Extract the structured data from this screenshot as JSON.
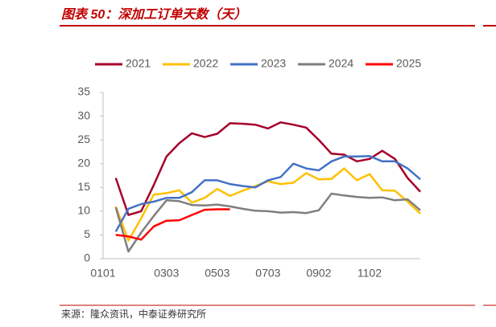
{
  "chart_data": {
    "type": "line",
    "title": "图表 50：深加工订单天数（天）",
    "source": "来源：隆众资讯，中泰证券研究所",
    "categories": [
      "0101",
      null,
      null,
      null,
      null,
      "0303",
      null,
      null,
      null,
      "0503",
      null,
      null,
      null,
      "0703",
      null,
      null,
      null,
      "0902",
      null,
      null,
      null,
      "1102",
      null,
      null,
      null,
      null
    ],
    "series": [
      {
        "name": "2021",
        "color": "#a5002a",
        "values": [
          null,
          17,
          9.2,
          10,
          15.5,
          21.5,
          24.3,
          26.4,
          25.6,
          26.3,
          28.5,
          28.4,
          28.2,
          27.4,
          28.7,
          28.2,
          27.6,
          25,
          22.1,
          21.9,
          20.5,
          21,
          22.7,
          21,
          17,
          14.1
        ]
      },
      {
        "name": "2022",
        "color": "#ffc000",
        "values": [
          null,
          11,
          3.8,
          8.5,
          13.5,
          13.8,
          14.4,
          11.8,
          12.8,
          14.7,
          13.2,
          14.3,
          15.3,
          16.3,
          15.7,
          16,
          18,
          16.7,
          16.8,
          19,
          16.5,
          17.8,
          14.4,
          14.3,
          12,
          9.5
        ]
      },
      {
        "name": "2023",
        "color": "#4472c4",
        "values": [
          null,
          5.7,
          10.5,
          11.5,
          12,
          12.8,
          12.8,
          14,
          16.5,
          16.5,
          15.7,
          15.3,
          15,
          16.5,
          17.2,
          20,
          19,
          18.6,
          20.5,
          21.5,
          21.5,
          21.6,
          20.5,
          20.5,
          19,
          16.7
        ]
      },
      {
        "name": "2024",
        "color": "#7f7f7f",
        "values": [
          null,
          10.8,
          1.5,
          5.5,
          9,
          12.3,
          12.1,
          11.3,
          11.2,
          11.4,
          11,
          10.5,
          10.1,
          10,
          9.7,
          9.8,
          9.6,
          10.2,
          13.7,
          13.3,
          13,
          12.8,
          12.9,
          12.3,
          12.5,
          10.2
        ]
      },
      {
        "name": "2025",
        "color": "#ff0000",
        "values": [
          null,
          5,
          4.7,
          4,
          6.8,
          8,
          8.1,
          9.2,
          10.3,
          10.4,
          10.4,
          null,
          null,
          null,
          null,
          null,
          null,
          null,
          null,
          null,
          null,
          null,
          null,
          null,
          null,
          null
        ]
      }
    ],
    "ylim": [
      0,
      35
    ],
    "yticks": [
      0,
      5,
      10,
      15,
      20,
      25,
      30,
      35
    ],
    "grid": false,
    "legend": "top"
  }
}
